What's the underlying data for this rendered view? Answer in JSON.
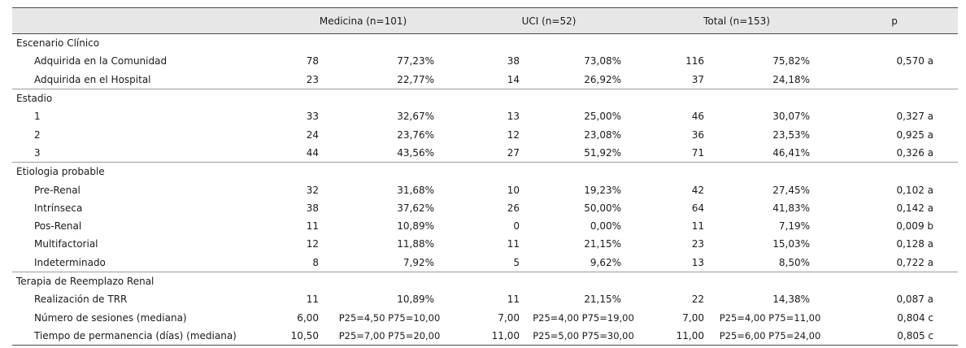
{
  "table": {
    "headers": [
      "",
      "Medicina (n=101)",
      "UCI (n=52)",
      "Total (n=153)",
      "p"
    ],
    "sections": [
      {
        "title": "Escenario Clínico",
        "rows": [
          {
            "label": "Adquirida en la Comunidad",
            "med_n": "78",
            "med_pct": "77,23%",
            "uci_n": "38",
            "uci_pct": "73,08%",
            "tot_n": "116",
            "tot_pct": "75,82%",
            "p": "0,570 a"
          },
          {
            "label": "Adquirida en el Hospital",
            "med_n": "23",
            "med_pct": "22,77%",
            "uci_n": "14",
            "uci_pct": "26,92%",
            "tot_n": "37",
            "tot_pct": "24,18%",
            "p": ""
          }
        ]
      },
      {
        "title": "Estadio",
        "rows": [
          {
            "label": "1",
            "med_n": "33",
            "med_pct": "32,67%",
            "uci_n": "13",
            "uci_pct": "25,00%",
            "tot_n": "46",
            "tot_pct": "30,07%",
            "p": "0,327 a"
          },
          {
            "label": "2",
            "med_n": "24",
            "med_pct": "23,76%",
            "uci_n": "12",
            "uci_pct": "23,08%",
            "tot_n": "36",
            "tot_pct": "23,53%",
            "p": "0,925 a"
          },
          {
            "label": "3",
            "med_n": "44",
            "med_pct": "43,56%",
            "uci_n": "27",
            "uci_pct": "51,92%",
            "tot_n": "71",
            "tot_pct": "46,41%",
            "p": "0,326 a"
          }
        ]
      },
      {
        "title": "Etiologia probable",
        "rows": [
          {
            "label": "Pre-Renal",
            "med_n": "32",
            "med_pct": "31,68%",
            "uci_n": "10",
            "uci_pct": "19,23%",
            "tot_n": "42",
            "tot_pct": "27,45%",
            "p": "0,102 a"
          },
          {
            "label": "Intrínseca",
            "med_n": "38",
            "med_pct": "37,62%",
            "uci_n": "26",
            "uci_pct": "50,00%",
            "tot_n": "64",
            "tot_pct": "41,83%",
            "p": "0,142 a"
          },
          {
            "label": "Pos-Renal",
            "med_n": "11",
            "med_pct": "10,89%",
            "uci_n": "0",
            "uci_pct": "0,00%",
            "tot_n": "11",
            "tot_pct": "7,19%",
            "p": "0,009 b"
          },
          {
            "label": "Multifactorial",
            "med_n": "12",
            "med_pct": "11,88%",
            "uci_n": "11",
            "uci_pct": "21,15%",
            "tot_n": "23",
            "tot_pct": "15,03%",
            "p": "0,128 a"
          },
          {
            "label": "Indeterminado",
            "med_n": "8",
            "med_pct": "7,92%",
            "uci_n": "5",
            "uci_pct": "9,62%",
            "tot_n": "13",
            "tot_pct": "8,50%",
            "p": "0,722 a"
          }
        ]
      },
      {
        "title": "Terapia de Reemplazo Renal",
        "rows": [
          {
            "label": "Realización de TRR",
            "med_n": "11",
            "med_pct": "10,89%",
            "uci_n": "11",
            "uci_pct": "21,15%",
            "tot_n": "22",
            "tot_pct": "14,38%",
            "p": "0,087 a"
          },
          {
            "label": "Número de sesiones (mediana)",
            "med_n": "6,00",
            "med_pct": "P25=4,50   P75=10,00",
            "uci_n": "7,00",
            "uci_pct": "P25=4,00   P75=19,00",
            "tot_n": "7,00",
            "tot_pct": "P25=4,00   P75=11,00",
            "p": "0,804 c",
            "iqr": true
          },
          {
            "label": "Tiempo de permanencia (días) (mediana)",
            "med_n": "10,50",
            "med_pct": "P25=7,00   P75=20,00",
            "uci_n": "11,00",
            "uci_pct": "P25=5,00   P75=30,00",
            "tot_n": "11,00",
            "tot_pct": "P25=6,00   P75=24,00",
            "p": "0,805 c",
            "iqr": true
          }
        ]
      }
    ]
  }
}
